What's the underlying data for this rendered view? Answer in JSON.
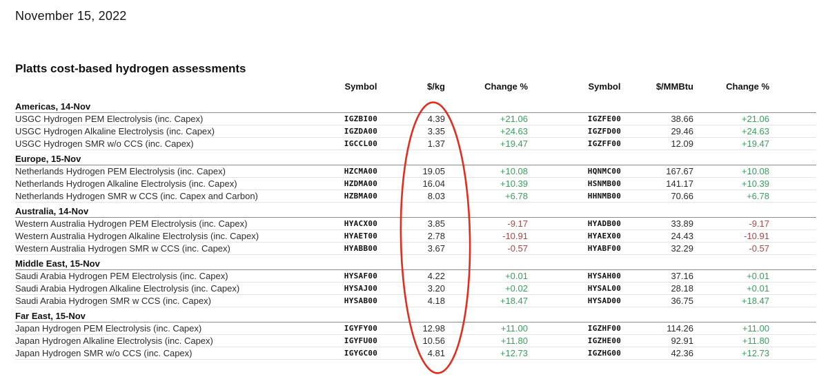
{
  "page": {
    "date": "November 15, 2022",
    "title": "Platts cost-based hydrogen assessments"
  },
  "table": {
    "headers": [
      "Symbol",
      "$/kg",
      "Change %",
      "Symbol",
      "$/MMBtu",
      "Change %"
    ],
    "sections": [
      {
        "label": "Americas, 14-Nov",
        "rows": [
          {
            "name": "USGC Hydrogen PEM Electrolysis (inc. Capex)",
            "symbol_kg": "IGZBI00",
            "price_kg": "4.39",
            "change_kg": "+21.06",
            "symbol_mmbtu": "IGZFE00",
            "price_mmbtu": "38.66",
            "change_mmbtu": "+21.06",
            "direction": "up"
          },
          {
            "name": "USGC Hydrogen Alkaline Electrolysis (inc. Capex)",
            "symbol_kg": "IGZDA00",
            "price_kg": "3.35",
            "change_kg": "+24.63",
            "symbol_mmbtu": "IGZFD00",
            "price_mmbtu": "29.46",
            "change_mmbtu": "+24.63",
            "direction": "up"
          },
          {
            "name": "USGC Hydrogen SMR w/o CCS (inc. Capex)",
            "symbol_kg": "IGCCL00",
            "price_kg": "1.37",
            "change_kg": "+19.47",
            "symbol_mmbtu": "IGZFF00",
            "price_mmbtu": "12.09",
            "change_mmbtu": "+19.47",
            "direction": "up"
          }
        ]
      },
      {
        "label": "Europe, 15-Nov",
        "rows": [
          {
            "name": "Netherlands Hydrogen PEM Electrolysis (inc. Capex)",
            "symbol_kg": "HZCMA00",
            "price_kg": "19.05",
            "change_kg": "+10.08",
            "symbol_mmbtu": "HQNMC00",
            "price_mmbtu": "167.67",
            "change_mmbtu": "+10.08",
            "direction": "up"
          },
          {
            "name": "Netherlands Hydrogen Alkaline Electrolysis (inc. Capex)",
            "symbol_kg": "HZDMA00",
            "price_kg": "16.04",
            "change_kg": "+10.39",
            "symbol_mmbtu": "HSNMB00",
            "price_mmbtu": "141.17",
            "change_mmbtu": "+10.39",
            "direction": "up"
          },
          {
            "name": "Netherlands Hydrogen SMR w CCS (inc. Capex and Carbon)",
            "symbol_kg": "HZBMA00",
            "price_kg": "8.03",
            "change_kg": "+6.78",
            "symbol_mmbtu": "HHNMB00",
            "price_mmbtu": "70.66",
            "change_mmbtu": "+6.78",
            "direction": "up"
          }
        ]
      },
      {
        "label": "Australia, 14-Nov",
        "rows": [
          {
            "name": "Western Australia Hydrogen PEM Electrolysis (inc. Capex)",
            "symbol_kg": "HYACX00",
            "price_kg": "3.85",
            "change_kg": "-9.17",
            "symbol_mmbtu": "HYADB00",
            "price_mmbtu": "33.89",
            "change_mmbtu": "-9.17",
            "direction": "down"
          },
          {
            "name": "Western Australia Hydrogen Alkaline Electrolysis (inc. Capex)",
            "symbol_kg": "HYAET00",
            "price_kg": "2.78",
            "change_kg": "-10.91",
            "symbol_mmbtu": "HYAEX00",
            "price_mmbtu": "24.43",
            "change_mmbtu": "-10.91",
            "direction": "down"
          },
          {
            "name": "Western Australia Hydrogen SMR w CCS (inc. Capex)",
            "symbol_kg": "HYABB00",
            "price_kg": "3.67",
            "change_kg": "-0.57",
            "symbol_mmbtu": "HYABF00",
            "price_mmbtu": "32.29",
            "change_mmbtu": "-0.57",
            "direction": "down"
          }
        ]
      },
      {
        "label": "Middle East, 15-Nov",
        "rows": [
          {
            "name": "Saudi Arabia Hydrogen PEM Electrolysis (inc. Capex)",
            "symbol_kg": "HYSAF00",
            "price_kg": "4.22",
            "change_kg": "+0.01",
            "symbol_mmbtu": "HYSAH00",
            "price_mmbtu": "37.16",
            "change_mmbtu": "+0.01",
            "direction": "up"
          },
          {
            "name": "Saudi Arabia Hydrogen Alkaline Electrolysis (inc. Capex)",
            "symbol_kg": "HYSAJ00",
            "price_kg": "3.20",
            "change_kg": "+0.02",
            "symbol_mmbtu": "HYSAL00",
            "price_mmbtu": "28.18",
            "change_mmbtu": "+0.01",
            "direction": "up"
          },
          {
            "name": "Saudi Arabia Hydrogen SMR w CCS (inc. Capex)",
            "symbol_kg": "HYSAB00",
            "price_kg": "4.18",
            "change_kg": "+18.47",
            "symbol_mmbtu": "HYSAD00",
            "price_mmbtu": "36.75",
            "change_mmbtu": "+18.47",
            "direction": "up"
          }
        ]
      },
      {
        "label": "Far East, 15-Nov",
        "rows": [
          {
            "name": "Japan Hydrogen PEM Electrolysis (inc. Capex)",
            "symbol_kg": "IGYFY00",
            "price_kg": "12.98",
            "change_kg": "+11.00",
            "symbol_mmbtu": "IGZHF00",
            "price_mmbtu": "114.26",
            "change_mmbtu": "+11.00",
            "direction": "up"
          },
          {
            "name": "Japan Hydrogen Alkaline Electrolysis (inc. Capex)",
            "symbol_kg": "IGYFU00",
            "price_kg": "10.56",
            "change_kg": "+11.80",
            "symbol_mmbtu": "IGZHE00",
            "price_mmbtu": "92.91",
            "change_mmbtu": "+11.80",
            "direction": "up"
          },
          {
            "name": "Japan Hydrogen SMR w/o CCS (inc. Capex)",
            "symbol_kg": "IGYGC00",
            "price_kg": "4.81",
            "change_kg": "+12.73",
            "symbol_mmbtu": "IGZHG00",
            "price_mmbtu": "42.36",
            "change_mmbtu": "+12.73",
            "direction": "up"
          }
        ]
      }
    ]
  },
  "colors": {
    "up": "#35a05b",
    "down": "#b04240",
    "section_rule": "#8a8a8a",
    "row_rule": "#e4e4e4"
  },
  "annotation": {
    "shape": "hand-drawn-ellipse",
    "color": "#e52b1d",
    "highlights": "$/kg column"
  }
}
